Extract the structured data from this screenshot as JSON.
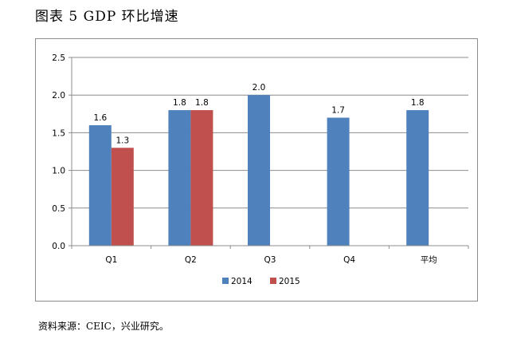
{
  "figure": {
    "title": "图表 5    GDP 环比增速",
    "source": "资料来源：CEIC，兴业研究。"
  },
  "chart_data": {
    "type": "bar",
    "categories": [
      "Q1",
      "Q2",
      "Q3",
      "Q4",
      "平均"
    ],
    "series": [
      {
        "name": "2014",
        "values": [
          1.6,
          1.8,
          2.0,
          1.7,
          1.8
        ],
        "color": "#4f81bd"
      },
      {
        "name": "2015",
        "values": [
          1.3,
          1.8,
          null,
          null,
          null
        ],
        "color": "#c0504d"
      }
    ],
    "ylim": [
      0,
      2.5
    ],
    "yticks": [
      "0.0",
      "0.5",
      "1.0",
      "1.5",
      "2.0",
      "2.5"
    ],
    "data_labels": [
      [
        "1.6",
        "1.8",
        "2.0",
        "1.7",
        "1.8"
      ],
      [
        "1.3",
        "1.8",
        null,
        null,
        null
      ]
    ],
    "grid": true,
    "legend_position": "bottom"
  }
}
